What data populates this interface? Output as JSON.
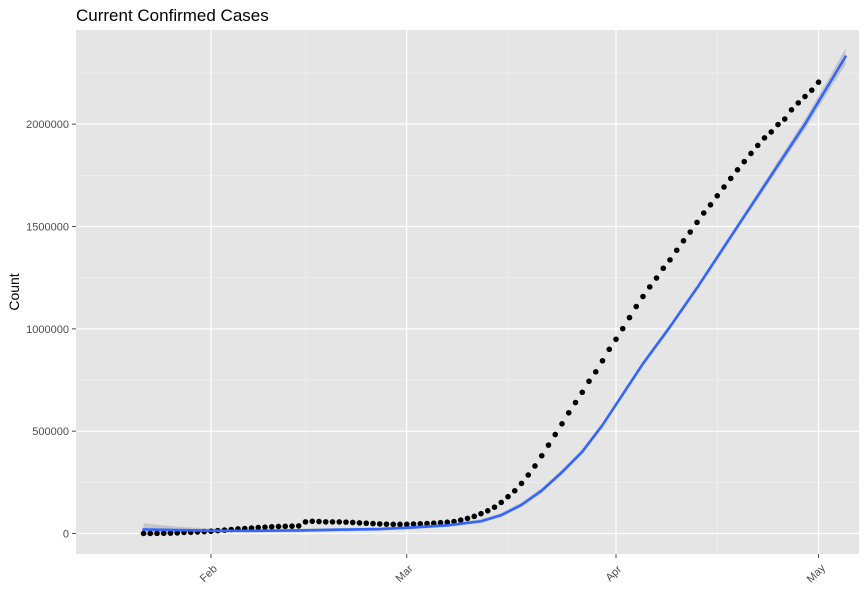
{
  "chart_data": {
    "type": "scatter",
    "title": "Current Confirmed Cases",
    "xlabel": "",
    "ylabel": "Count",
    "x_axis": {
      "kind": "date",
      "range": [
        "2020-01-12",
        "2020-05-07"
      ],
      "ticks": [
        {
          "date": "2020-02-01",
          "label": "Feb"
        },
        {
          "date": "2020-03-01",
          "label": "Mar"
        },
        {
          "date": "2020-04-01",
          "label": "Apr"
        },
        {
          "date": "2020-05-01",
          "label": "May"
        }
      ],
      "minor_grid": [
        "2020-02-15",
        "2020-03-16",
        "2020-04-16"
      ]
    },
    "y_axis": {
      "range": [
        -100000,
        2460000
      ],
      "ticks": [
        0,
        500000,
        1000000,
        1500000,
        2000000
      ],
      "tick_labels": [
        "0",
        "500000",
        "1000000",
        "1500000",
        "2000000"
      ],
      "minor_grid": [
        250000,
        750000,
        1250000,
        1750000,
        2250000
      ]
    },
    "grid": true,
    "legend": "none",
    "series": [
      {
        "kind": "points",
        "color": "#000000",
        "x_start": "2020-01-22",
        "x_step_days": 1,
        "values": [
          548,
          643,
          920,
          1406,
          2075,
          2877,
          5509,
          5878,
          7694,
          9442,
          11300,
          14073,
          16767,
          19647,
          22600,
          24540,
          27066,
          29327,
          31075,
          33062,
          34418,
          35117,
          36092,
          37108,
          56839,
          59700,
          58530,
          56900,
          57000,
          56700,
          55700,
          54100,
          52000,
          50400,
          48600,
          47000,
          45800,
          45000,
          44800,
          45300,
          46600,
          47600,
          49000,
          50300,
          52800,
          55300,
          58800,
          65700,
          74000,
          84000,
          97000,
          111000,
          129000,
          152000,
          180000,
          209000,
          245000,
          286000,
          330000,
          380000,
          432000,
          484000,
          536000,
          590000,
          640000,
          690000,
          744000,
          790000,
          844000,
          900000,
          949000,
          1001000,
          1055000,
          1109000,
          1158000,
          1205000,
          1248000,
          1296000,
          1337000,
          1384000,
          1430000,
          1473000,
          1520000,
          1566000,
          1606000,
          1650000,
          1693000,
          1735000,
          1777000,
          1817000,
          1857000,
          1896000,
          1933000,
          1962000,
          1998000,
          2025000,
          2070000,
          2104000,
          2135000,
          2166000,
          2205000
        ]
      },
      {
        "kind": "smooth",
        "color": "#3366ff",
        "ribbon_color": "#bfbfbf",
        "points": [
          {
            "x": "2020-01-22",
            "y": 20000,
            "lo": -10000,
            "hi": 50000
          },
          {
            "x": "2020-01-27",
            "y": 17000,
            "lo": 0,
            "hi": 34000
          },
          {
            "x": "2020-02-01",
            "y": 14000,
            "lo": 4000,
            "hi": 24000
          },
          {
            "x": "2020-02-07",
            "y": 13000,
            "lo": 5000,
            "hi": 21000
          },
          {
            "x": "2020-02-14",
            "y": 15000,
            "lo": 7000,
            "hi": 23000
          },
          {
            "x": "2020-02-20",
            "y": 19000,
            "lo": 11000,
            "hi": 27000
          },
          {
            "x": "2020-02-26",
            "y": 22000,
            "lo": 14000,
            "hi": 30000
          },
          {
            "x": "2020-03-02",
            "y": 30000,
            "lo": 22000,
            "hi": 38000
          },
          {
            "x": "2020-03-07",
            "y": 40000,
            "lo": 32000,
            "hi": 48000
          },
          {
            "x": "2020-03-12",
            "y": 60000,
            "lo": 52000,
            "hi": 70000
          },
          {
            "x": "2020-03-15",
            "y": 90000,
            "lo": 80000,
            "hi": 100000
          },
          {
            "x": "2020-03-18",
            "y": 140000,
            "lo": 130000,
            "hi": 152000
          },
          {
            "x": "2020-03-21",
            "y": 210000,
            "lo": 198000,
            "hi": 222000
          },
          {
            "x": "2020-03-24",
            "y": 300000,
            "lo": 288000,
            "hi": 312000
          },
          {
            "x": "2020-03-27",
            "y": 400000,
            "lo": 388000,
            "hi": 412000
          },
          {
            "x": "2020-03-30",
            "y": 530000,
            "lo": 518000,
            "hi": 542000
          },
          {
            "x": "2020-04-01",
            "y": 630000,
            "lo": 618000,
            "hi": 642000
          },
          {
            "x": "2020-04-05",
            "y": 830000,
            "lo": 818000,
            "hi": 842000
          },
          {
            "x": "2020-04-09",
            "y": 1010000,
            "lo": 998000,
            "hi": 1022000
          },
          {
            "x": "2020-04-13",
            "y": 1200000,
            "lo": 1188000,
            "hi": 1212000
          },
          {
            "x": "2020-04-17",
            "y": 1400000,
            "lo": 1386000,
            "hi": 1414000
          },
          {
            "x": "2020-04-21",
            "y": 1600000,
            "lo": 1584000,
            "hi": 1616000
          },
          {
            "x": "2020-04-25",
            "y": 1800000,
            "lo": 1780000,
            "hi": 1820000
          },
          {
            "x": "2020-04-29",
            "y": 2000000,
            "lo": 1975000,
            "hi": 2025000
          },
          {
            "x": "2020-05-01",
            "y": 2110000,
            "lo": 2082000,
            "hi": 2138000
          },
          {
            "x": "2020-05-03",
            "y": 2220000,
            "lo": 2188000,
            "hi": 2252000
          },
          {
            "x": "2020-05-05",
            "y": 2330000,
            "lo": 2290000,
            "hi": 2370000
          }
        ]
      }
    ],
    "colors": {
      "panel_bg": "#e5e5e5",
      "grid_major": "#ffffff",
      "grid_minor": "#f2f2f2",
      "tick": "#4d4d4d"
    }
  }
}
